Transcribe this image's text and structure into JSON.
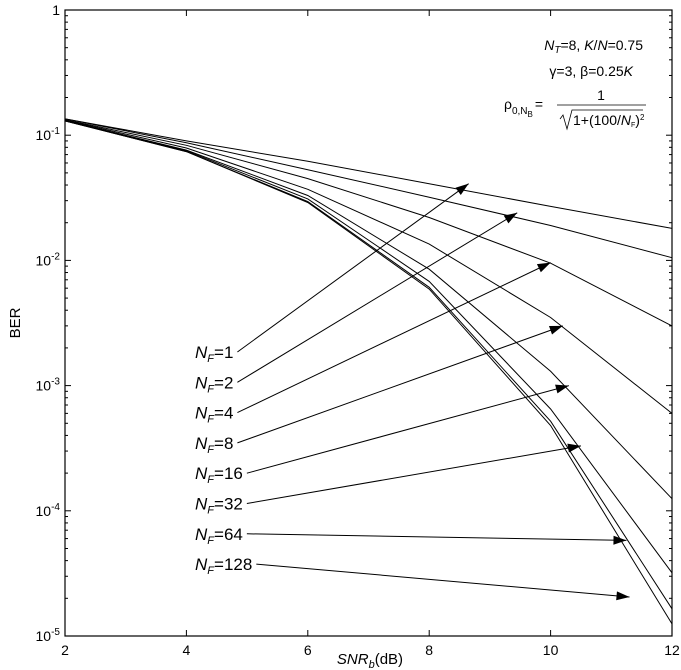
{
  "chart_data": {
    "type": "line",
    "title": "",
    "xlabel": "SNR_b(dB)",
    "xlabel_main": "SNR",
    "xlabel_sub": "b",
    "xlabel_unit": "(dB)",
    "ylabel": "BER",
    "x_scale": "linear",
    "y_scale": "log",
    "xlim": [
      2,
      12
    ],
    "ylim": [
      1e-05,
      1
    ],
    "grid": false,
    "x_ticks": [
      2,
      4,
      6,
      8,
      10,
      12
    ],
    "y_ticks": [
      {
        "value": 1,
        "base": "1",
        "exp": ""
      },
      {
        "value": 0.1,
        "base": "10",
        "exp": "-1"
      },
      {
        "value": 0.01,
        "base": "10",
        "exp": "-2"
      },
      {
        "value": 0.001,
        "base": "10",
        "exp": "-3"
      },
      {
        "value": 0.0001,
        "base": "10",
        "exp": "-4"
      },
      {
        "value": 1e-05,
        "base": "10",
        "exp": "-5"
      }
    ],
    "x": [
      2,
      4,
      6,
      8,
      10,
      12
    ],
    "series": [
      {
        "name": "N_F=1",
        "label_main": "N",
        "label_sub": "F",
        "label_value": "=1",
        "values": [
          0.135,
          0.09,
          0.062,
          0.041,
          0.027,
          0.018
        ]
      },
      {
        "name": "N_F=2",
        "label_main": "N",
        "label_sub": "F",
        "label_value": "=2",
        "values": [
          0.135,
          0.087,
          0.053,
          0.032,
          0.019,
          0.0105
        ]
      },
      {
        "name": "N_F=4",
        "label_main": "N",
        "label_sub": "F",
        "label_value": "=4",
        "values": [
          0.133,
          0.083,
          0.045,
          0.022,
          0.0095,
          0.003
        ]
      },
      {
        "name": "N_F=8",
        "label_main": "N",
        "label_sub": "F",
        "label_value": "=8",
        "values": [
          0.132,
          0.079,
          0.037,
          0.0135,
          0.0035,
          0.0006
        ]
      },
      {
        "name": "N_F=16",
        "label_main": "N",
        "label_sub": "F",
        "label_value": "=16",
        "values": [
          0.131,
          0.076,
          0.033,
          0.0085,
          0.0013,
          0.000125
        ]
      },
      {
        "name": "N_F=32",
        "label_main": "N",
        "label_sub": "F",
        "label_value": "=32",
        "values": [
          0.13,
          0.075,
          0.031,
          0.0068,
          0.00065,
          3.2e-05
        ]
      },
      {
        "name": "N_F=64",
        "label_main": "N",
        "label_sub": "F",
        "label_value": "=64",
        "values": [
          0.13,
          0.074,
          0.0295,
          0.0061,
          0.00052,
          1.65e-05
        ]
      },
      {
        "name": "N_F=128",
        "label_main": "N",
        "label_sub": "F",
        "label_value": "=128",
        "values": [
          0.13,
          0.074,
          0.029,
          0.0059,
          0.00048,
          1.25e-05
        ]
      }
    ],
    "arrow_targets": [
      {
        "series": "N_F=1",
        "x": 8.65,
        "y": 0.041
      },
      {
        "series": "N_F=2",
        "x": 9.45,
        "y": 0.024
      },
      {
        "series": "N_F=4",
        "x": 10.0,
        "y": 0.0096
      },
      {
        "series": "N_F=8",
        "x": 10.2,
        "y": 0.003
      },
      {
        "series": "N_F=16",
        "x": 10.3,
        "y": 0.001
      },
      {
        "series": "N_F=32",
        "x": 10.5,
        "y": 0.00033
      },
      {
        "series": "N_F=64",
        "x": 11.25,
        "y": 5.8e-05
      },
      {
        "series": "N_F=128",
        "x": 11.3,
        "y": 2.05e-05
      }
    ],
    "annotations": {
      "line1": {
        "a_main": "N",
        "a_sub": "T",
        "a_val": "=8, ",
        "b_main": "K",
        "b_sep": "/",
        "b_main2": "N",
        "b_val": "=0.75"
      },
      "line2": {
        "g": "γ",
        "g_val": "=3, ",
        "b": "β",
        "b_val": "=0.25",
        "b_var": "K"
      },
      "line3": {
        "rho": "ρ",
        "rho_sub": "0,N",
        "rho_subsub": "B",
        "eq": "=",
        "numerator": "1",
        "den_pre": "1+(100/",
        "den_var": "N",
        "den_sub": "F",
        "den_post": ")",
        "den_exp": "2"
      }
    }
  }
}
